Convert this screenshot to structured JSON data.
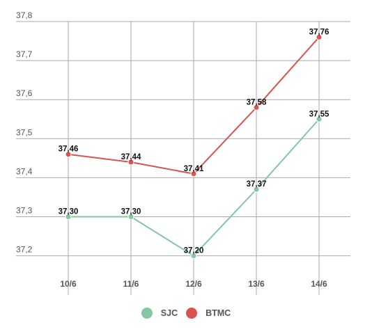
{
  "chart_data": {
    "type": "line",
    "categories": [
      "10/6",
      "11/6",
      "12/6",
      "13/6",
      "14/6"
    ],
    "series": [
      {
        "name": "SJC",
        "values": [
          37.3,
          37.3,
          37.2,
          37.37,
          37.55
        ],
        "labels": [
          "37,30",
          "37,30",
          "37,20",
          "37,37",
          "37,55"
        ],
        "color": "#86c6a1"
      },
      {
        "name": "BTMC",
        "values": [
          37.46,
          37.44,
          37.41,
          37.58,
          37.76
        ],
        "labels": [
          "37,46",
          "37,44",
          "37,41",
          "37,58",
          "37,76"
        ],
        "color": "#d9534f"
      }
    ],
    "ylim": [
      37.1,
      37.8
    ],
    "yticks": [
      37.2,
      37.3,
      37.4,
      37.5,
      37.6,
      37.7,
      37.8
    ],
    "ytick_labels": [
      "37,2",
      "37,3",
      "37,4",
      "37,5",
      "37,6",
      "37,7",
      "37,8"
    ],
    "grid": true,
    "legend_position": "bottom",
    "title": "",
    "xlabel": "",
    "ylabel": ""
  },
  "legend": {
    "items": [
      {
        "label": "SJC",
        "color": "#86c6a1"
      },
      {
        "label": "BTMC",
        "color": "#d9534f"
      }
    ]
  }
}
